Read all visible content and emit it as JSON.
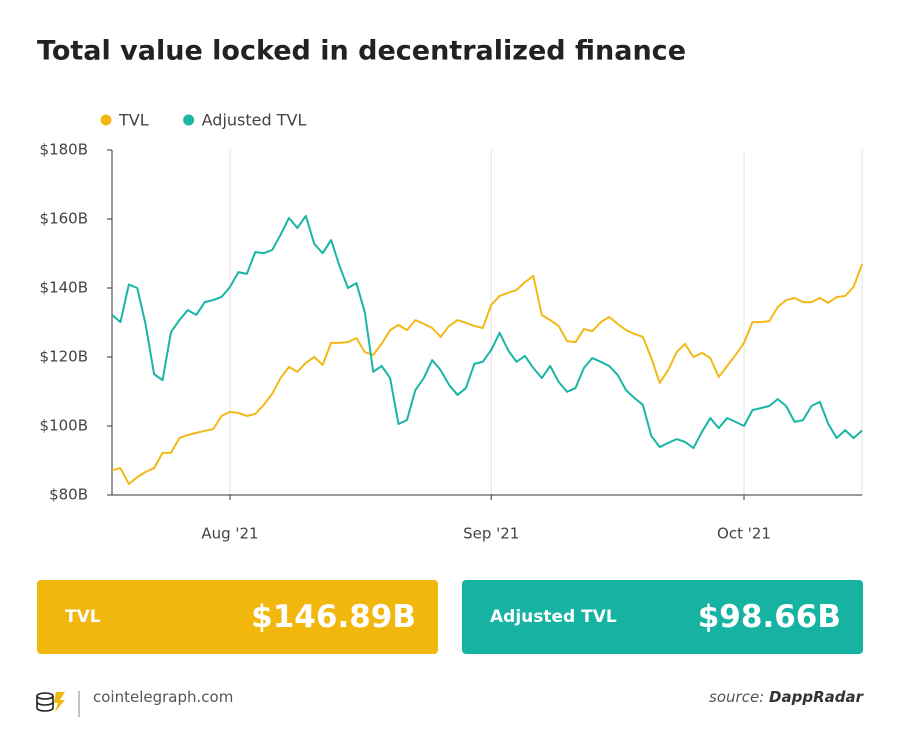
{
  "chart_data": {
    "type": "line",
    "title": "Total value locked in decentralized finance",
    "categories": [
      null,
      null,
      null,
      null,
      null,
      null,
      null,
      null,
      null,
      null,
      null,
      null,
      null,
      null,
      "Aug '21",
      null,
      null,
      null,
      null,
      null,
      null,
      null,
      null,
      null,
      null,
      null,
      null,
      null,
      null,
      null,
      null,
      null,
      null,
      null,
      null,
      null,
      null,
      null,
      null,
      null,
      null,
      null,
      null,
      null,
      null,
      "Sep '21",
      null,
      null,
      null,
      null,
      null,
      null,
      null,
      null,
      null,
      null,
      null,
      null,
      null,
      null,
      null,
      null,
      null,
      null,
      null,
      null,
      null,
      null,
      null,
      null,
      null,
      null,
      null,
      null,
      null,
      "Oct '21",
      null,
      null,
      null,
      null,
      null,
      null,
      null,
      null,
      null,
      null,
      null,
      null,
      null,
      null
    ],
    "series": [
      {
        "name": "TVL",
        "color": "#f2b916",
        "values": [
          87.2,
          87.8,
          83.2,
          85.2,
          86.7,
          87.8,
          92.2,
          92.2,
          96.5,
          97.4,
          98.0,
          98.6,
          99.1,
          102.9,
          104.1,
          103.8,
          102.9,
          103.5,
          106.1,
          109.3,
          113.9,
          117.1,
          115.7,
          118.3,
          120.0,
          117.7,
          124.1,
          124.1,
          124.3,
          125.5,
          121.4,
          120.6,
          123.8,
          127.8,
          129.3,
          127.8,
          130.7,
          129.6,
          128.4,
          125.8,
          129.0,
          130.7,
          129.9,
          129.0,
          128.4,
          135.1,
          137.7,
          138.6,
          139.4,
          141.7,
          143.5,
          132.2,
          130.7,
          129.0,
          124.6,
          124.3,
          128.1,
          127.5,
          130.1,
          131.6,
          129.6,
          127.8,
          126.7,
          125.8,
          119.7,
          112.5,
          116.2,
          121.4,
          123.8,
          120.0,
          121.2,
          119.7,
          114.2,
          117.4,
          120.6,
          124.1,
          130.1,
          130.1,
          130.4,
          134.5,
          136.5,
          137.1,
          135.9,
          135.9,
          137.1,
          135.7,
          137.4,
          137.7,
          140.3,
          146.89
        ]
      },
      {
        "name": "Adjusted TVL",
        "color": "#19b5a5",
        "values": [
          132.2,
          130.1,
          141.0,
          140.0,
          129.3,
          115.0,
          113.3,
          127.2,
          130.7,
          133.6,
          132.2,
          135.9,
          136.5,
          137.4,
          140.3,
          144.6,
          144.1,
          150.4,
          150.1,
          151.0,
          155.4,
          160.3,
          157.4,
          160.9,
          152.8,
          150.1,
          153.9,
          146.4,
          140.0,
          141.4,
          133.0,
          115.7,
          117.4,
          113.9,
          100.6,
          101.7,
          110.4,
          113.9,
          119.1,
          116.2,
          111.9,
          109.0,
          111.0,
          118.0,
          118.6,
          122.0,
          127.0,
          122.0,
          118.6,
          120.3,
          116.8,
          113.9,
          117.4,
          112.8,
          109.9,
          111.0,
          116.8,
          119.7,
          118.6,
          117.4,
          114.8,
          110.4,
          108.1,
          106.1,
          97.1,
          93.9,
          95.1,
          96.2,
          95.4,
          93.6,
          98.3,
          102.3,
          99.4,
          102.3,
          101.2,
          100.0,
          104.6,
          105.2,
          105.8,
          107.8,
          105.8,
          101.2,
          101.7,
          105.8,
          107.0,
          100.6,
          96.5,
          98.8,
          96.5,
          98.66
        ]
      }
    ],
    "ylim": [
      80,
      180
    ],
    "yticks": [
      {
        "value": 80,
        "label": "$80B"
      },
      {
        "value": 100,
        "label": "$100B"
      },
      {
        "value": 120,
        "label": "$120B"
      },
      {
        "value": 140,
        "label": "$140B"
      },
      {
        "value": 160,
        "label": "$160B"
      },
      {
        "value": 180,
        "label": "$180B"
      }
    ],
    "grid": "x",
    "legend": "top-left"
  },
  "cards": [
    {
      "label": "TVL",
      "value": "$146.89B",
      "color": "#f2b70d"
    },
    {
      "label": "Adjusted TVL",
      "value": "$98.66B",
      "color": "#16b3a3"
    }
  ],
  "footer": {
    "site": "cointelegraph.com",
    "source_prefix": "source:",
    "source": "DappRadar"
  }
}
